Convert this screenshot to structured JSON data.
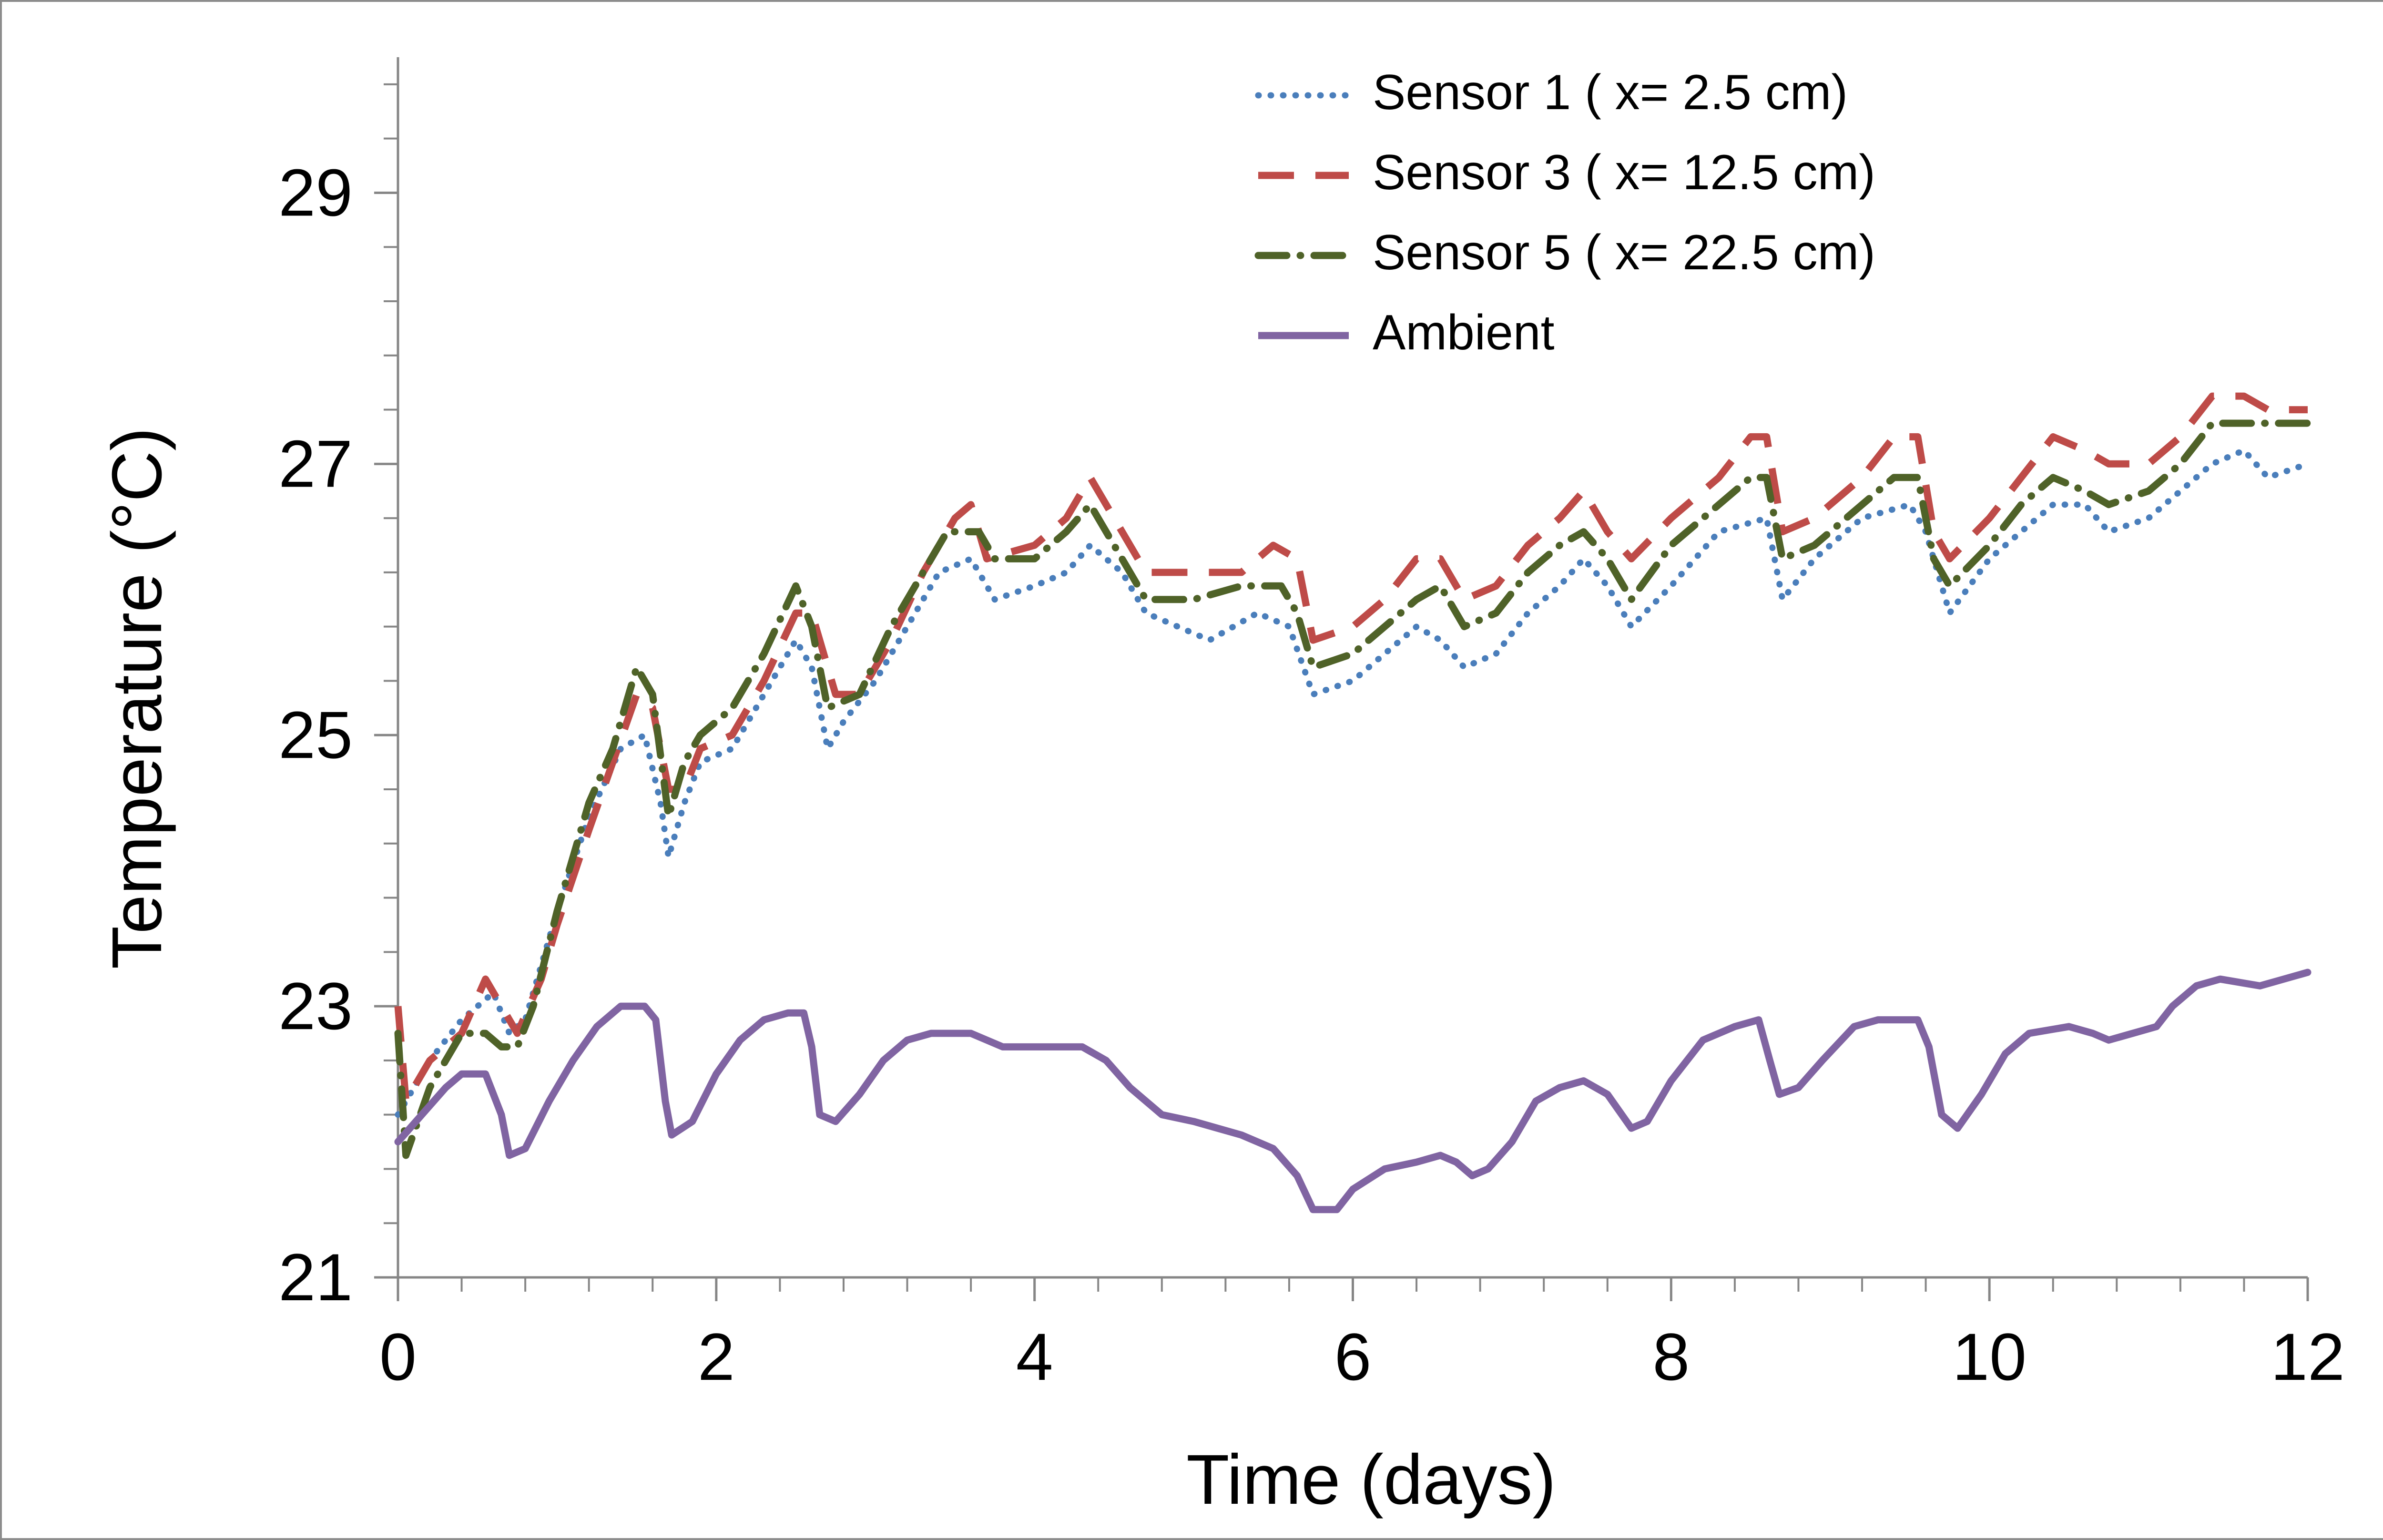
{
  "chart_data": {
    "type": "line",
    "title": "",
    "xlabel": "Time (days)",
    "ylabel": "Temperature (°C)",
    "xlim": [
      0,
      12
    ],
    "ylim": [
      21,
      30
    ],
    "xticks": [
      0,
      2,
      4,
      6,
      8,
      10,
      12
    ],
    "yticks": [
      21,
      23,
      25,
      27,
      29
    ],
    "x_minor_step": 0.4,
    "y_minor_step": 0.4,
    "grid": false,
    "legend_position": "top-right",
    "series": [
      {
        "name": "Sensor 1 ( x= 2.5 cm)",
        "color": "#4a7ebb",
        "style": "dotted",
        "points": [
          [
            0,
            22.2
          ],
          [
            0.2,
            22.6
          ],
          [
            0.4,
            22.9
          ],
          [
            0.6,
            23.1
          ],
          [
            0.7,
            22.8
          ],
          [
            0.8,
            22.9
          ],
          [
            1.0,
            23.7
          ],
          [
            1.2,
            24.4
          ],
          [
            1.4,
            24.9
          ],
          [
            1.55,
            25.0
          ],
          [
            1.65,
            24.5
          ],
          [
            1.7,
            24.1
          ],
          [
            1.8,
            24.5
          ],
          [
            1.9,
            24.8
          ],
          [
            2.1,
            24.9
          ],
          [
            2.3,
            25.3
          ],
          [
            2.5,
            25.7
          ],
          [
            2.6,
            25.5
          ],
          [
            2.7,
            24.9
          ],
          [
            2.8,
            25.1
          ],
          [
            3.0,
            25.4
          ],
          [
            3.2,
            25.8
          ],
          [
            3.4,
            26.2
          ],
          [
            3.6,
            26.3
          ],
          [
            3.75,
            26.0
          ],
          [
            4.0,
            26.1
          ],
          [
            4.2,
            26.2
          ],
          [
            4.35,
            26.4
          ],
          [
            4.55,
            26.2
          ],
          [
            4.7,
            25.9
          ],
          [
            4.9,
            25.8
          ],
          [
            5.1,
            25.7
          ],
          [
            5.4,
            25.9
          ],
          [
            5.6,
            25.8
          ],
          [
            5.75,
            25.3
          ],
          [
            6.0,
            25.4
          ],
          [
            6.2,
            25.6
          ],
          [
            6.4,
            25.8
          ],
          [
            6.55,
            25.7
          ],
          [
            6.7,
            25.5
          ],
          [
            6.9,
            25.6
          ],
          [
            7.1,
            25.9
          ],
          [
            7.3,
            26.1
          ],
          [
            7.45,
            26.3
          ],
          [
            7.6,
            26.1
          ],
          [
            7.75,
            25.8
          ],
          [
            8.0,
            26.1
          ],
          [
            8.3,
            26.5
          ],
          [
            8.6,
            26.6
          ],
          [
            8.7,
            26.0
          ],
          [
            8.9,
            26.3
          ],
          [
            9.2,
            26.6
          ],
          [
            9.5,
            26.7
          ],
          [
            9.6,
            26.5
          ],
          [
            9.75,
            25.9
          ],
          [
            10.0,
            26.3
          ],
          [
            10.2,
            26.5
          ],
          [
            10.4,
            26.7
          ],
          [
            10.6,
            26.7
          ],
          [
            10.75,
            26.5
          ],
          [
            11.0,
            26.6
          ],
          [
            11.2,
            26.8
          ],
          [
            11.4,
            27.0
          ],
          [
            11.6,
            27.1
          ],
          [
            11.75,
            26.9
          ],
          [
            12.0,
            27.0
          ]
        ]
      },
      {
        "name": "Sensor 3 ( x= 12.5 cm)",
        "color": "#be4b48",
        "style": "dashed",
        "points": [
          [
            0,
            23.0
          ],
          [
            0.05,
            22.3
          ],
          [
            0.2,
            22.6
          ],
          [
            0.4,
            22.8
          ],
          [
            0.55,
            23.2
          ],
          [
            0.65,
            23.0
          ],
          [
            0.75,
            22.8
          ],
          [
            0.9,
            23.2
          ],
          [
            1.0,
            23.6
          ],
          [
            1.2,
            24.3
          ],
          [
            1.35,
            24.8
          ],
          [
            1.5,
            25.3
          ],
          [
            1.6,
            25.2
          ],
          [
            1.7,
            24.6
          ],
          [
            1.8,
            24.6
          ],
          [
            1.9,
            24.9
          ],
          [
            2.1,
            25.0
          ],
          [
            2.3,
            25.4
          ],
          [
            2.5,
            25.9
          ],
          [
            2.6,
            25.9
          ],
          [
            2.75,
            25.3
          ],
          [
            2.9,
            25.3
          ],
          [
            3.1,
            25.7
          ],
          [
            3.3,
            26.2
          ],
          [
            3.5,
            26.6
          ],
          [
            3.6,
            26.7
          ],
          [
            3.7,
            26.3
          ],
          [
            4.0,
            26.4
          ],
          [
            4.2,
            26.6
          ],
          [
            4.35,
            26.9
          ],
          [
            4.5,
            26.6
          ],
          [
            4.7,
            26.2
          ],
          [
            5.0,
            26.2
          ],
          [
            5.3,
            26.2
          ],
          [
            5.5,
            26.4
          ],
          [
            5.65,
            26.3
          ],
          [
            5.75,
            25.7
          ],
          [
            6.0,
            25.8
          ],
          [
            6.2,
            26.0
          ],
          [
            6.4,
            26.3
          ],
          [
            6.55,
            26.3
          ],
          [
            6.7,
            26.0
          ],
          [
            6.9,
            26.1
          ],
          [
            7.1,
            26.4
          ],
          [
            7.3,
            26.6
          ],
          [
            7.45,
            26.8
          ],
          [
            7.6,
            26.5
          ],
          [
            7.75,
            26.3
          ],
          [
            8.0,
            26.6
          ],
          [
            8.3,
            26.9
          ],
          [
            8.5,
            27.2
          ],
          [
            8.6,
            27.2
          ],
          [
            8.7,
            26.5
          ],
          [
            8.9,
            26.6
          ],
          [
            9.2,
            26.9
          ],
          [
            9.4,
            27.2
          ],
          [
            9.55,
            27.2
          ],
          [
            9.65,
            26.5
          ],
          [
            9.75,
            26.3
          ],
          [
            10.0,
            26.6
          ],
          [
            10.2,
            26.9
          ],
          [
            10.4,
            27.2
          ],
          [
            10.6,
            27.1
          ],
          [
            10.75,
            27.0
          ],
          [
            11.0,
            27.0
          ],
          [
            11.2,
            27.2
          ],
          [
            11.4,
            27.5
          ],
          [
            11.6,
            27.5
          ],
          [
            11.75,
            27.4
          ],
          [
            12.0,
            27.4
          ]
        ]
      },
      {
        "name": "Sensor 5 ( x= 22.5 cm)",
        "color": "#4f6228",
        "style": "dash-dot",
        "points": [
          [
            0,
            22.8
          ],
          [
            0.05,
            21.9
          ],
          [
            0.2,
            22.4
          ],
          [
            0.4,
            22.8
          ],
          [
            0.55,
            22.8
          ],
          [
            0.65,
            22.7
          ],
          [
            0.75,
            22.7
          ],
          [
            0.85,
            23.0
          ],
          [
            1.0,
            23.7
          ],
          [
            1.2,
            24.5
          ],
          [
            1.35,
            24.9
          ],
          [
            1.5,
            25.5
          ],
          [
            1.6,
            25.3
          ],
          [
            1.7,
            24.4
          ],
          [
            1.8,
            24.8
          ],
          [
            1.9,
            25.0
          ],
          [
            2.1,
            25.2
          ],
          [
            2.3,
            25.6
          ],
          [
            2.5,
            26.1
          ],
          [
            2.6,
            25.8
          ],
          [
            2.7,
            25.2
          ],
          [
            2.9,
            25.3
          ],
          [
            3.1,
            25.8
          ],
          [
            3.3,
            26.2
          ],
          [
            3.45,
            26.5
          ],
          [
            3.65,
            26.5
          ],
          [
            3.75,
            26.3
          ],
          [
            4.0,
            26.3
          ],
          [
            4.2,
            26.5
          ],
          [
            4.35,
            26.7
          ],
          [
            4.5,
            26.4
          ],
          [
            4.7,
            26.0
          ],
          [
            5.0,
            26.0
          ],
          [
            5.3,
            26.1
          ],
          [
            5.55,
            26.1
          ],
          [
            5.65,
            25.9
          ],
          [
            5.75,
            25.5
          ],
          [
            6.0,
            25.6
          ],
          [
            6.2,
            25.8
          ],
          [
            6.4,
            26.0
          ],
          [
            6.55,
            26.1
          ],
          [
            6.7,
            25.8
          ],
          [
            6.9,
            25.9
          ],
          [
            7.1,
            26.2
          ],
          [
            7.3,
            26.4
          ],
          [
            7.45,
            26.5
          ],
          [
            7.6,
            26.3
          ],
          [
            7.75,
            26.0
          ],
          [
            8.0,
            26.4
          ],
          [
            8.3,
            26.7
          ],
          [
            8.5,
            26.9
          ],
          [
            8.6,
            26.9
          ],
          [
            8.7,
            26.3
          ],
          [
            8.9,
            26.4
          ],
          [
            9.2,
            26.7
          ],
          [
            9.4,
            26.9
          ],
          [
            9.55,
            26.9
          ],
          [
            9.65,
            26.3
          ],
          [
            9.75,
            26.1
          ],
          [
            10.0,
            26.4
          ],
          [
            10.2,
            26.7
          ],
          [
            10.4,
            26.9
          ],
          [
            10.6,
            26.8
          ],
          [
            10.75,
            26.7
          ],
          [
            11.0,
            26.8
          ],
          [
            11.2,
            27.0
          ],
          [
            11.4,
            27.3
          ],
          [
            11.6,
            27.3
          ],
          [
            11.75,
            27.3
          ],
          [
            12.0,
            27.3
          ]
        ]
      },
      {
        "name": "Ambient",
        "color": "#8064a2",
        "style": "solid",
        "points": [
          [
            0,
            22.0
          ],
          [
            0.15,
            22.2
          ],
          [
            0.3,
            22.4
          ],
          [
            0.4,
            22.5
          ],
          [
            0.55,
            22.5
          ],
          [
            0.65,
            22.2
          ],
          [
            0.7,
            21.9
          ],
          [
            0.8,
            21.95
          ],
          [
            0.95,
            22.3
          ],
          [
            1.1,
            22.6
          ],
          [
            1.25,
            22.85
          ],
          [
            1.4,
            23.0
          ],
          [
            1.55,
            23.0
          ],
          [
            1.62,
            22.9
          ],
          [
            1.68,
            22.3
          ],
          [
            1.72,
            22.05
          ],
          [
            1.85,
            22.15
          ],
          [
            2.0,
            22.5
          ],
          [
            2.15,
            22.75
          ],
          [
            2.3,
            22.9
          ],
          [
            2.45,
            22.95
          ],
          [
            2.55,
            22.95
          ],
          [
            2.6,
            22.7
          ],
          [
            2.65,
            22.2
          ],
          [
            2.75,
            22.15
          ],
          [
            2.9,
            22.35
          ],
          [
            3.05,
            22.6
          ],
          [
            3.2,
            22.75
          ],
          [
            3.35,
            22.8
          ],
          [
            3.6,
            22.8
          ],
          [
            3.8,
            22.7
          ],
          [
            4.0,
            22.7
          ],
          [
            4.3,
            22.7
          ],
          [
            4.45,
            22.6
          ],
          [
            4.6,
            22.4
          ],
          [
            4.8,
            22.2
          ],
          [
            5.0,
            22.15
          ],
          [
            5.3,
            22.05
          ],
          [
            5.5,
            21.95
          ],
          [
            5.65,
            21.75
          ],
          [
            5.75,
            21.5
          ],
          [
            5.9,
            21.5
          ],
          [
            6.0,
            21.65
          ],
          [
            6.2,
            21.8
          ],
          [
            6.4,
            21.85
          ],
          [
            6.55,
            21.9
          ],
          [
            6.65,
            21.85
          ],
          [
            6.75,
            21.75
          ],
          [
            6.85,
            21.8
          ],
          [
            7.0,
            22.0
          ],
          [
            7.15,
            22.3
          ],
          [
            7.3,
            22.4
          ],
          [
            7.45,
            22.45
          ],
          [
            7.6,
            22.35
          ],
          [
            7.75,
            22.1
          ],
          [
            7.85,
            22.15
          ],
          [
            8.0,
            22.45
          ],
          [
            8.2,
            22.75
          ],
          [
            8.4,
            22.85
          ],
          [
            8.55,
            22.9
          ],
          [
            8.62,
            22.6
          ],
          [
            8.68,
            22.35
          ],
          [
            8.8,
            22.4
          ],
          [
            8.95,
            22.6
          ],
          [
            9.15,
            22.85
          ],
          [
            9.3,
            22.9
          ],
          [
            9.55,
            22.9
          ],
          [
            9.62,
            22.7
          ],
          [
            9.7,
            22.2
          ],
          [
            9.8,
            22.1
          ],
          [
            9.95,
            22.35
          ],
          [
            10.1,
            22.65
          ],
          [
            10.25,
            22.8
          ],
          [
            10.5,
            22.85
          ],
          [
            10.65,
            22.8
          ],
          [
            10.75,
            22.75
          ],
          [
            10.9,
            22.8
          ],
          [
            11.05,
            22.85
          ],
          [
            11.15,
            23.0
          ],
          [
            11.3,
            23.15
          ],
          [
            11.45,
            23.2
          ],
          [
            11.7,
            23.15
          ],
          [
            11.85,
            23.2
          ],
          [
            12.0,
            23.25
          ]
        ]
      }
    ]
  }
}
